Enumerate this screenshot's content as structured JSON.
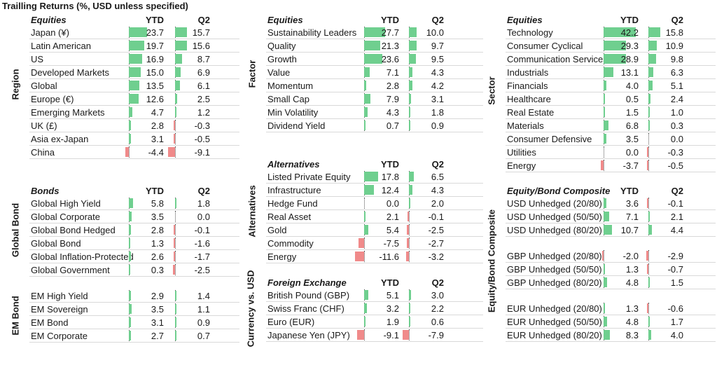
{
  "page": {
    "title": "Trailling Returns (%, USD unless specified)"
  },
  "colors": {
    "positive": "#6fcf8f",
    "negative": "#f08a8a"
  },
  "chart_data": [
    {
      "type": "table",
      "title": "Equities",
      "group": "Region",
      "col1": "YTD",
      "col2": "Q2",
      "rows": [
        {
          "label": "Japan (¥)",
          "ytd": 23.7,
          "q2": 15.7
        },
        {
          "label": "Latin American",
          "ytd": 19.7,
          "q2": 15.6
        },
        {
          "label": "US",
          "ytd": 16.9,
          "q2": 8.7
        },
        {
          "label": "Developed Markets",
          "ytd": 15.0,
          "q2": 6.9
        },
        {
          "label": "Global",
          "ytd": 13.5,
          "q2": 6.1
        },
        {
          "label": "Europe (€)",
          "ytd": 12.6,
          "q2": 2.5
        },
        {
          "label": "Emerging Markets",
          "ytd": 4.7,
          "q2": 1.2
        },
        {
          "label": "UK (£)",
          "ytd": 2.8,
          "q2": -0.3
        },
        {
          "label": "Asia ex-Japan",
          "ytd": 3.1,
          "q2": -0.5
        },
        {
          "label": "China",
          "ytd": -4.4,
          "q2": -9.1
        }
      ]
    },
    {
      "type": "table",
      "title": "Bonds",
      "group": "Global Bond",
      "col1": "YTD",
      "col2": "Q2",
      "rows": [
        {
          "label": "Global High Yield",
          "ytd": 5.8,
          "q2": 1.8
        },
        {
          "label": "Global Corporate",
          "ytd": 3.5,
          "q2": 0.0
        },
        {
          "label": "Global Bond Hedged",
          "ytd": 2.8,
          "q2": -0.1
        },
        {
          "label": "Global Bond",
          "ytd": 1.3,
          "q2": -1.6
        },
        {
          "label": "Global Inflation-Protected",
          "ytd": 2.6,
          "q2": -1.7
        },
        {
          "label": "Global Government",
          "ytd": 0.3,
          "q2": -2.5
        }
      ]
    },
    {
      "type": "table",
      "title": "",
      "group": "EM Bond",
      "col1": "",
      "col2": "",
      "rows": [
        {
          "label": "EM High Yield",
          "ytd": 2.9,
          "q2": 1.4
        },
        {
          "label": "EM Sovereign",
          "ytd": 3.5,
          "q2": 1.1
        },
        {
          "label": "EM Bond",
          "ytd": 3.1,
          "q2": 0.9
        },
        {
          "label": "EM Corporate",
          "ytd": 2.7,
          "q2": 0.7
        }
      ]
    },
    {
      "type": "table",
      "title": "Equities",
      "group": "Factor",
      "col1": "YTD",
      "col2": "Q2",
      "rows": [
        {
          "label": "Sustainability Leaders",
          "ytd": 27.7,
          "q2": 10.0
        },
        {
          "label": "Quality",
          "ytd": 21.3,
          "q2": 9.7
        },
        {
          "label": "Growth",
          "ytd": 23.6,
          "q2": 9.5
        },
        {
          "label": "Value",
          "ytd": 7.1,
          "q2": 4.3
        },
        {
          "label": "Momentum",
          "ytd": 2.8,
          "q2": 4.2
        },
        {
          "label": "Small Cap",
          "ytd": 7.9,
          "q2": 3.1
        },
        {
          "label": "Min Volatility",
          "ytd": 4.3,
          "q2": 1.8
        },
        {
          "label": "Dividend Yield",
          "ytd": 0.7,
          "q2": 0.9
        }
      ]
    },
    {
      "type": "table",
      "title": "Alternatives",
      "group": "Alternatives",
      "col1": "YTD",
      "col2": "Q2",
      "rows": [
        {
          "label": "Listed Private Equity",
          "ytd": 17.8,
          "q2": 6.5
        },
        {
          "label": "Infrastructure",
          "ytd": 12.4,
          "q2": 4.3
        },
        {
          "label": "Hedge Fund",
          "ytd": 0.0,
          "q2": 2.0
        },
        {
          "label": "Real Asset",
          "ytd": 2.1,
          "q2": -0.1
        },
        {
          "label": "Gold",
          "ytd": 5.4,
          "q2": -2.5
        },
        {
          "label": "Commodity",
          "ytd": -7.5,
          "q2": -2.7
        },
        {
          "label": "Energy",
          "ytd": -11.6,
          "q2": -3.2
        }
      ]
    },
    {
      "type": "table",
      "title": "Foreign Exchange",
      "group": "Currency vs. USD",
      "col1": "YTD",
      "col2": "Q2",
      "rows": [
        {
          "label": "British Pound (GBP)",
          "ytd": 5.1,
          "q2": 3.0
        },
        {
          "label": "Swiss Franc (CHF)",
          "ytd": 3.2,
          "q2": 2.2
        },
        {
          "label": "Euro (EUR)",
          "ytd": 1.9,
          "q2": 0.6
        },
        {
          "label": "Japanese Yen (JPY)",
          "ytd": -9.1,
          "q2": -7.9
        }
      ]
    },
    {
      "type": "table",
      "title": "Equities",
      "group": "Sector",
      "col1": "YTD",
      "col2": "Q2",
      "rows": [
        {
          "label": "Technology",
          "ytd": 42.2,
          "q2": 15.8
        },
        {
          "label": "Consumer Cyclical",
          "ytd": 29.3,
          "q2": 10.9
        },
        {
          "label": "Communication Services",
          "ytd": 28.9,
          "q2": 9.8
        },
        {
          "label": "Industrials",
          "ytd": 13.1,
          "q2": 6.3
        },
        {
          "label": "Financials",
          "ytd": 4.0,
          "q2": 5.1
        },
        {
          "label": "Healthcare",
          "ytd": 0.5,
          "q2": 2.4
        },
        {
          "label": "Real Estate",
          "ytd": 1.5,
          "q2": 1.0
        },
        {
          "label": "Materials",
          "ytd": 6.8,
          "q2": 0.3
        },
        {
          "label": "Consumer Defensive",
          "ytd": 3.5,
          "q2": 0.0
        },
        {
          "label": "Utilities",
          "ytd": 0.0,
          "q2": -0.3
        },
        {
          "label": "Energy",
          "ytd": -3.7,
          "q2": -0.5
        }
      ]
    },
    {
      "type": "table",
      "title": "Equity/Bond Composite",
      "group": "Equity/Bond Composite",
      "col1": "YTD",
      "col2": "Q2",
      "rows": [
        {
          "label": "USD Unhedged (20/80)",
          "ytd": 3.6,
          "q2": -0.1
        },
        {
          "label": "USD Unhedged (50/50)",
          "ytd": 7.1,
          "q2": 2.1
        },
        {
          "label": "USD Unhedged (80/20)",
          "ytd": 10.7,
          "q2": 4.4
        },
        {
          "label": "GBP Unhedged (20/80)",
          "ytd": -2.0,
          "q2": -2.9
        },
        {
          "label": "GBP Unhedged (50/50)",
          "ytd": 1.3,
          "q2": -0.7
        },
        {
          "label": "GBP Unhedged (80/20)",
          "ytd": 4.8,
          "q2": 1.5
        },
        {
          "label": "EUR Unhedged (20/80)",
          "ytd": 1.3,
          "q2": -0.6
        },
        {
          "label": "EUR Unhedged (50/50)",
          "ytd": 4.8,
          "q2": 1.7
        },
        {
          "label": "EUR Unhedged (80/20)",
          "ytd": 8.3,
          "q2": 4.0
        }
      ]
    }
  ]
}
